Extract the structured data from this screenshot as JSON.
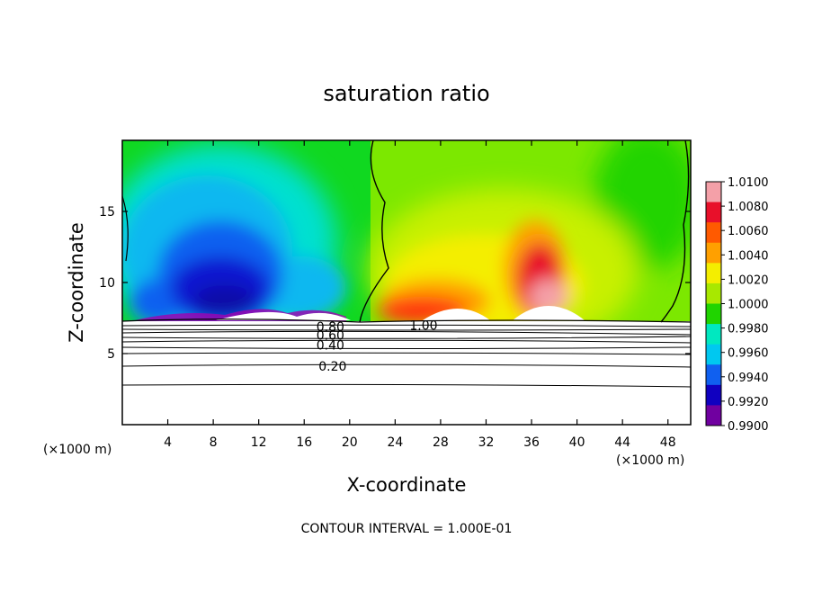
{
  "chart_data": {
    "type": "heatmap",
    "title": "saturation ratio",
    "xlabel": "X-coordinate",
    "ylabel": "Z-coordinate",
    "x_unit_label": "(×1000 m)",
    "xlim": [
      0,
      50
    ],
    "ylim": [
      0,
      20
    ],
    "x_ticks": [
      4,
      8,
      12,
      16,
      20,
      24,
      28,
      32,
      36,
      40,
      44,
      48
    ],
    "y_ticks": [
      5,
      10,
      15
    ],
    "colorbar": {
      "ticks": [
        "1.0100",
        "1.0080",
        "1.0060",
        "1.0040",
        "1.0020",
        "1.0000",
        "0.9980",
        "0.9960",
        "0.9940",
        "0.9920",
        "0.9900"
      ],
      "values": [
        1.01,
        1.008,
        1.006,
        1.004,
        1.002,
        1.0,
        0.998,
        0.996,
        0.994,
        0.992,
        0.99
      ],
      "colors": [
        "#f4a0a8",
        "#e8102a",
        "#ff5a00",
        "#ffa000",
        "#f4ee00",
        "#a8e800",
        "#20d400",
        "#00e8c0",
        "#00c8f0",
        "#1060f0",
        "#1000c0",
        "#7000a0"
      ]
    },
    "contour_labels": [
      {
        "text": "0.20",
        "x": 18.5,
        "z": 4.1
      },
      {
        "text": "0.40",
        "x": 18.3,
        "z": 5.6
      },
      {
        "text": "0.60",
        "x": 18.3,
        "z": 6.3
      },
      {
        "text": "0.80",
        "x": 18.3,
        "z": 6.9
      },
      {
        "text": "1.00",
        "x": 26.5,
        "z": 7.0
      }
    ],
    "contour_interval_text": "CONTOUR INTERVAL = 1.000E-01"
  }
}
